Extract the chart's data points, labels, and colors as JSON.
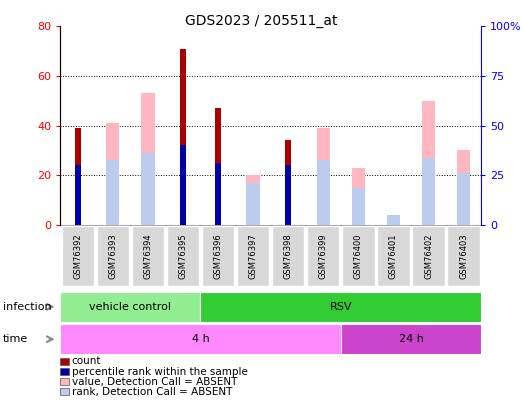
{
  "title": "GDS2023 / 205511_at",
  "samples": [
    "GSM76392",
    "GSM76393",
    "GSM76394",
    "GSM76395",
    "GSM76396",
    "GSM76397",
    "GSM76398",
    "GSM76399",
    "GSM76400",
    "GSM76401",
    "GSM76402",
    "GSM76403"
  ],
  "count_values": [
    39,
    0,
    0,
    71,
    47,
    0,
    34,
    0,
    0,
    0,
    0,
    0
  ],
  "rank_values": [
    24,
    0,
    0,
    32,
    25,
    0,
    24,
    0,
    0,
    0,
    0,
    0
  ],
  "absent_value": [
    0,
    41,
    53,
    0,
    0,
    20,
    0,
    39,
    23,
    0,
    50,
    30
  ],
  "absent_rank": [
    0,
    26,
    29,
    0,
    0,
    17,
    0,
    26,
    15,
    4,
    27,
    21
  ],
  "left_ylim": [
    0,
    80
  ],
  "right_ylim": [
    0,
    100
  ],
  "left_yticks": [
    0,
    20,
    40,
    60,
    80
  ],
  "right_yticks": [
    0,
    25,
    50,
    75,
    100
  ],
  "right_yticklabels": [
    "0",
    "25",
    "50",
    "75",
    "100%"
  ],
  "infection_groups": [
    {
      "label": "vehicle control",
      "start": 0,
      "end": 4,
      "color": "#90EE90"
    },
    {
      "label": "RSV",
      "start": 4,
      "end": 12,
      "color": "#32CD32"
    }
  ],
  "time_groups": [
    {
      "label": "4 h",
      "start": 0,
      "end": 8,
      "color": "#FF88FF"
    },
    {
      "label": "24 h",
      "start": 8,
      "end": 12,
      "color": "#CC44CC"
    }
  ],
  "count_color": "#AA0000",
  "rank_color": "#0000AA",
  "absent_value_color": "#FFB6C1",
  "absent_rank_color": "#BBCCEE",
  "legend_items": [
    {
      "label": "count",
      "color": "#AA0000"
    },
    {
      "label": "percentile rank within the sample",
      "color": "#0000AA"
    },
    {
      "label": "value, Detection Call = ABSENT",
      "color": "#FFB6C1"
    },
    {
      "label": "rank, Detection Call = ABSENT",
      "color": "#BBCCEE"
    }
  ]
}
